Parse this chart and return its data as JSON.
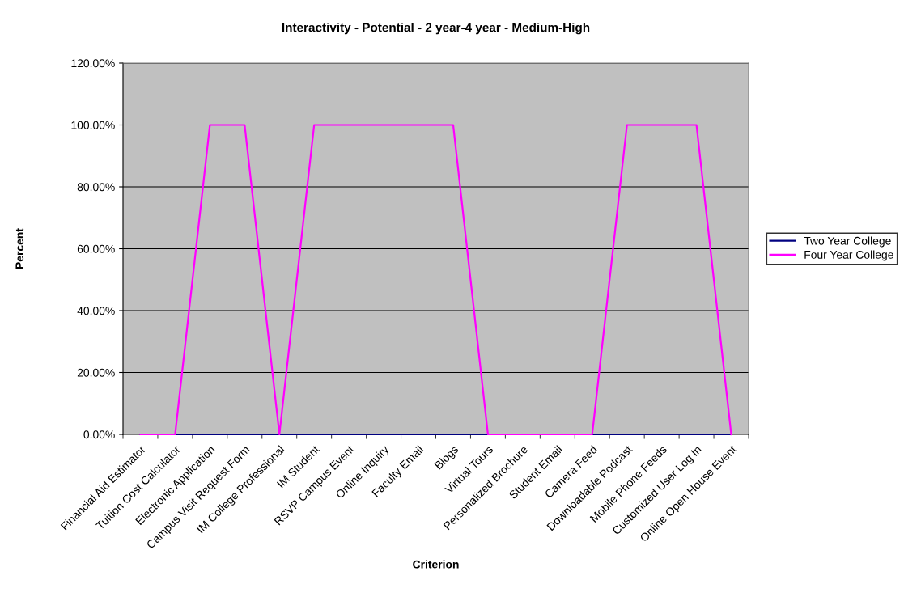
{
  "chart_data": {
    "type": "line",
    "title": "Interactivity - Potential - 2 year-4 year - Medium-High",
    "xlabel": "Criterion",
    "ylabel": "Percent",
    "categories": [
      "Financial Aid Estimator",
      "Tuition Cost Calculator",
      "Electronic Application",
      "Campus Visit Request Form",
      "IM College Professional",
      "IM Student",
      "RSVP Campus Event",
      "Online Inquiry",
      "Faculty Email",
      "Blogs",
      "Virtual Tours",
      "Personalized Brochure",
      "Student Email",
      "Camera Feed",
      "Downloadable Podcast",
      "Mobile Phone Feeds",
      "Customized User Log In",
      "Online Open House Event"
    ],
    "series": [
      {
        "name": "Two Year College",
        "color": "#000080",
        "values": [
          0,
          0,
          0,
          0,
          0,
          0,
          0,
          0,
          0,
          0,
          0,
          0,
          0,
          0,
          0,
          0,
          0,
          0
        ]
      },
      {
        "name": "Four Year College",
        "color": "#ff00ff",
        "values": [
          0,
          0,
          100,
          100,
          0,
          100,
          100,
          100,
          100,
          100,
          0,
          0,
          0,
          0,
          100,
          100,
          100,
          0
        ]
      }
    ],
    "ylim": [
      0,
      120
    ],
    "yticks": [
      {
        "value": 0,
        "label": "0.00%"
      },
      {
        "value": 20,
        "label": "20.00%"
      },
      {
        "value": 40,
        "label": "40.00%"
      },
      {
        "value": 60,
        "label": "60.00%"
      },
      {
        "value": 80,
        "label": "80.00%"
      },
      {
        "value": 100,
        "label": "100.00%"
      },
      {
        "value": 120,
        "label": "120.00%"
      }
    ],
    "grid": "y",
    "legend": "right",
    "marker": "none",
    "line_style": "solid"
  }
}
